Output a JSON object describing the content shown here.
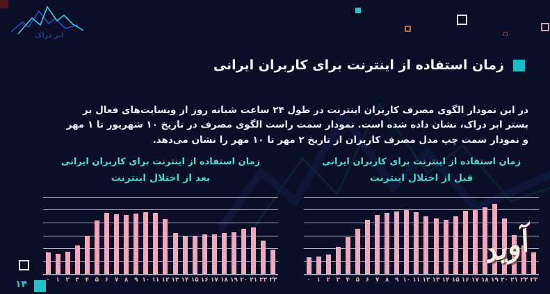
{
  "logo": {
    "brand_name": "ابر دراک"
  },
  "header": {
    "title": "زمان استفاده از اینترنت برای کاربران ایرانی"
  },
  "description": "در این نمودار الگوی مصرف کاربران اینترنت در طول ۲۴ ساعت شبانه روز از وبسایت‌های فعال بر بستر ابر دراک، نشان داده شده است. نمودار سمت راست الگوی مصرف در تاریخ ۱۰ شهریور تا ۱ مهر و نمودار سمت چپ مدل مصرف کاربران از تاریخ ۲ مهر تا ۱۰ مهر را نشان می‌دهد.",
  "page_number": "۱۴",
  "watermark_signature": "آوید",
  "colors": {
    "background": "#0a0e26",
    "accent_teal": "#2ec9c9",
    "bar_pink": "#efa9bd",
    "title_white": "#f2f4f8",
    "chart_title_teal": "#4fd8cd",
    "gridline": "#cdd4e4",
    "xlabel_pink": "#dcaeb3"
  },
  "chart_data": [
    {
      "type": "bar",
      "position": "left",
      "title": "زمان استفاده از اینترنت برای کاربران ایرانی",
      "subtitle": "بعد از اختلال اینترنت",
      "xlabel": "",
      "ylabel": "",
      "ylim": [
        0,
        6
      ],
      "gridline_count": 7,
      "grid": true,
      "legend": false,
      "bar_color": "#efa9bd",
      "categories": [
        "۰",
        "۱",
        "۲",
        "۳",
        "۴",
        "۵",
        "۶",
        "۷",
        "۸",
        "۹",
        "۱۰",
        "۱۱",
        "۱۲",
        "۱۳",
        "۱۴",
        "۱۵",
        "۱۶",
        "۱۷",
        "۱۸",
        "۱۹",
        "۲۰",
        "۲۱",
        "۲۲",
        "۲۳"
      ],
      "values": [
        1.7,
        1.55,
        1.75,
        2.2,
        3.0,
        4.15,
        4.75,
        4.65,
        4.6,
        4.7,
        4.8,
        4.75,
        4.25,
        3.2,
        2.9,
        2.95,
        3.1,
        3.1,
        3.2,
        3.25,
        3.5,
        3.6,
        2.6,
        1.9
      ]
    },
    {
      "type": "bar",
      "position": "right",
      "title": "زمان استفاده از اینترنت برای کاربران ایرانی",
      "subtitle": "قبل از اختلال اینترنت",
      "xlabel": "",
      "ylabel": "",
      "ylim": [
        0,
        6
      ],
      "gridline_count": 7,
      "grid": true,
      "legend": false,
      "bar_color": "#efa9bd",
      "categories": [
        "۰",
        "۱",
        "۲",
        "۳",
        "۴",
        "۵",
        "۶",
        "۷",
        "۸",
        "۹",
        "۱۰",
        "۱۱",
        "۱۲",
        "۱۳",
        "۱۴",
        "۱۵",
        "۱۶",
        "۱۷",
        "۱۸",
        "۱۹",
        "۲۰",
        "۲۱",
        "۲۲",
        "۲۳"
      ],
      "values": [
        1.3,
        1.35,
        1.5,
        2.1,
        2.85,
        3.5,
        4.2,
        4.6,
        4.75,
        4.85,
        4.95,
        4.8,
        4.5,
        4.3,
        4.2,
        4.5,
        4.9,
        5.0,
        5.2,
        5.45,
        4.35,
        3.05,
        2.2,
        1.7
      ]
    }
  ]
}
